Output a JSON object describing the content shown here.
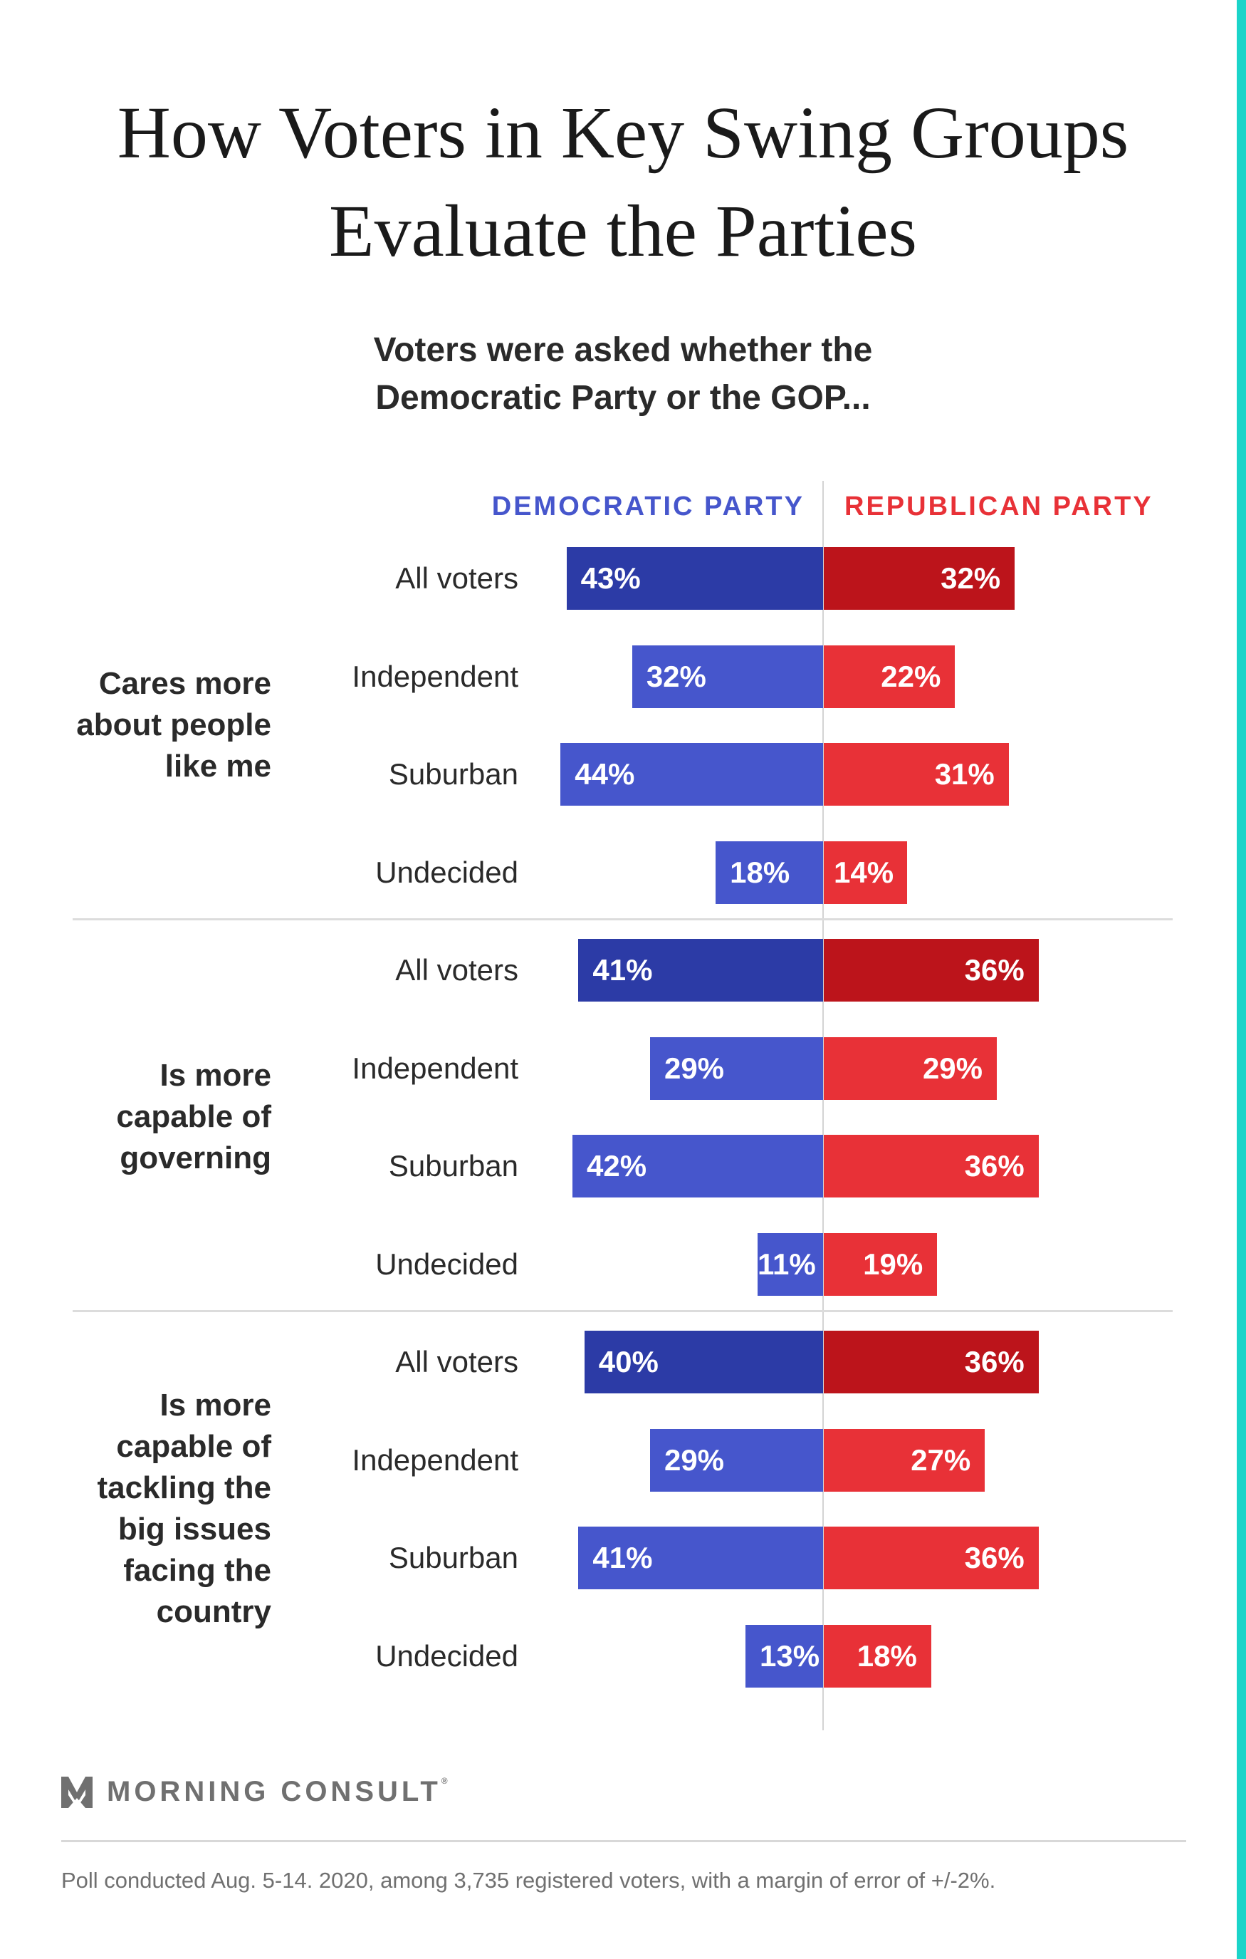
{
  "title": [
    "How Voters in Key Swing Groups",
    "Evaluate the Parties"
  ],
  "subtitle": [
    "Voters were asked whether the",
    "Democratic Party or the GOP..."
  ],
  "chart_data": {
    "type": "bar",
    "orientation": "horizontal-diverging",
    "legend": [
      "DEMOCRATIC PARTY",
      "REPUBLICAN PARTY"
    ],
    "legend_placement": "top",
    "colors": {
      "democratic_all": "#2c3ba6",
      "democratic": "#4656cc",
      "republican_all": "#bc141b",
      "republican": "#e83137"
    },
    "groups": [
      {
        "label": [
          "Cares more",
          "about people",
          "like me"
        ],
        "rows": [
          {
            "category": "All voters",
            "dem": 43,
            "rep": 32
          },
          {
            "category": "Independent",
            "dem": 32,
            "rep": 22
          },
          {
            "category": "Suburban",
            "dem": 44,
            "rep": 31
          },
          {
            "category": "Undecided",
            "dem": 18,
            "rep": 14
          }
        ]
      },
      {
        "label": [
          "Is more",
          "capable of",
          "governing"
        ],
        "rows": [
          {
            "category": "All voters",
            "dem": 41,
            "rep": 36
          },
          {
            "category": "Independent",
            "dem": 29,
            "rep": 29
          },
          {
            "category": "Suburban",
            "dem": 42,
            "rep": 36
          },
          {
            "category": "Undecided",
            "dem": 11,
            "rep": 19
          }
        ]
      },
      {
        "label": [
          "Is more",
          "capable of",
          "tackling the",
          "big issues",
          "facing the",
          "country"
        ],
        "rows": [
          {
            "category": "All voters",
            "dem": 40,
            "rep": 36
          },
          {
            "category": "Independent",
            "dem": 29,
            "rep": 27
          },
          {
            "category": "Suburban",
            "dem": 41,
            "rep": 36
          },
          {
            "category": "Undecided",
            "dem": 13,
            "rep": 18
          }
        ]
      }
    ],
    "value_format": "%"
  },
  "brand": {
    "logo_text": "MORNING CONSULT",
    "mark": "®",
    "logo_icon": "morning-consult-m-icon"
  },
  "footnote": "Poll conducted Aug. 5-14. 2020, among 3,735 registered voters, with a margin of error of +/-2%."
}
